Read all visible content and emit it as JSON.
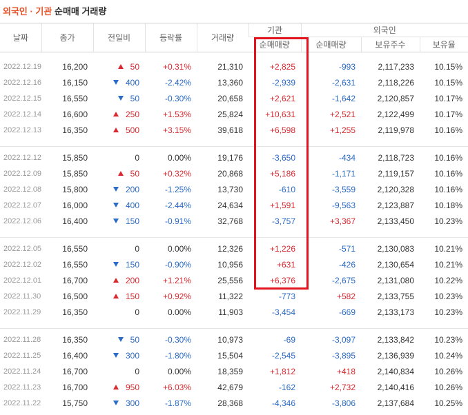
{
  "title": {
    "highlight": "외국인 · 기관",
    "rest": "순매매 거래량"
  },
  "table": {
    "header_top": [
      "날짜",
      "종가",
      "전일비",
      "등락률",
      "거래량",
      "기관",
      "외국인"
    ],
    "header_sub": [
      "순매매량",
      "순매매량",
      "보유주수",
      "보유율"
    ],
    "groups": [
      [
        {
          "date": "2022.12.19",
          "close": "16,200",
          "dir": "up",
          "change": "50",
          "rate": "+0.31%",
          "volume": "21,310",
          "inst": "+2,825",
          "foreign": "-993",
          "holdings": "2,117,233",
          "ratio": "10.15%"
        },
        {
          "date": "2022.12.16",
          "close": "16,150",
          "dir": "down",
          "change": "400",
          "rate": "-2.42%",
          "volume": "13,360",
          "inst": "-2,939",
          "foreign": "-2,631",
          "holdings": "2,118,226",
          "ratio": "10.15%"
        },
        {
          "date": "2022.12.15",
          "close": "16,550",
          "dir": "down",
          "change": "50",
          "rate": "-0.30%",
          "volume": "20,658",
          "inst": "+2,621",
          "foreign": "-1,642",
          "holdings": "2,120,857",
          "ratio": "10.17%"
        },
        {
          "date": "2022.12.14",
          "close": "16,600",
          "dir": "up",
          "change": "250",
          "rate": "+1.53%",
          "volume": "25,824",
          "inst": "+10,631",
          "foreign": "+2,521",
          "holdings": "2,122,499",
          "ratio": "10.17%"
        },
        {
          "date": "2022.12.13",
          "close": "16,350",
          "dir": "up",
          "change": "500",
          "rate": "+3.15%",
          "volume": "39,618",
          "inst": "+6,598",
          "foreign": "+1,255",
          "holdings": "2,119,978",
          "ratio": "10.16%"
        }
      ],
      [
        {
          "date": "2022.12.12",
          "close": "15,850",
          "dir": null,
          "change": "0",
          "rate": "0.00%",
          "volume": "19,176",
          "inst": "-3,650",
          "foreign": "-434",
          "holdings": "2,118,723",
          "ratio": "10.16%"
        },
        {
          "date": "2022.12.09",
          "close": "15,850",
          "dir": "up",
          "change": "50",
          "rate": "+0.32%",
          "volume": "20,868",
          "inst": "+5,186",
          "foreign": "-1,171",
          "holdings": "2,119,157",
          "ratio": "10.16%"
        },
        {
          "date": "2022.12.08",
          "close": "15,800",
          "dir": "down",
          "change": "200",
          "rate": "-1.25%",
          "volume": "13,730",
          "inst": "-610",
          "foreign": "-3,559",
          "holdings": "2,120,328",
          "ratio": "10.16%"
        },
        {
          "date": "2022.12.07",
          "close": "16,000",
          "dir": "down",
          "change": "400",
          "rate": "-2.44%",
          "volume": "24,634",
          "inst": "+1,591",
          "foreign": "-9,563",
          "holdings": "2,123,887",
          "ratio": "10.18%"
        },
        {
          "date": "2022.12.06",
          "close": "16,400",
          "dir": "down",
          "change": "150",
          "rate": "-0.91%",
          "volume": "32,768",
          "inst": "-3,757",
          "foreign": "+3,367",
          "holdings": "2,133,450",
          "ratio": "10.23%"
        }
      ],
      [
        {
          "date": "2022.12.05",
          "close": "16,550",
          "dir": null,
          "change": "0",
          "rate": "0.00%",
          "volume": "12,326",
          "inst": "+1,226",
          "foreign": "-571",
          "holdings": "2,130,083",
          "ratio": "10.21%"
        },
        {
          "date": "2022.12.02",
          "close": "16,550",
          "dir": "down",
          "change": "150",
          "rate": "-0.90%",
          "volume": "10,956",
          "inst": "+631",
          "foreign": "-426",
          "holdings": "2,130,654",
          "ratio": "10.21%"
        },
        {
          "date": "2022.12.01",
          "close": "16,700",
          "dir": "up",
          "change": "200",
          "rate": "+1.21%",
          "volume": "25,556",
          "inst": "+6,376",
          "foreign": "-2,675",
          "holdings": "2,131,080",
          "ratio": "10.22%"
        },
        {
          "date": "2022.11.30",
          "close": "16,500",
          "dir": "up",
          "change": "150",
          "rate": "+0.92%",
          "volume": "11,322",
          "inst": "-773",
          "foreign": "+582",
          "holdings": "2,133,755",
          "ratio": "10.23%"
        },
        {
          "date": "2022.11.29",
          "close": "16,350",
          "dir": null,
          "change": "0",
          "rate": "0.00%",
          "volume": "11,903",
          "inst": "-3,454",
          "foreign": "-669",
          "holdings": "2,133,173",
          "ratio": "10.23%"
        }
      ],
      [
        {
          "date": "2022.11.28",
          "close": "16,350",
          "dir": "down",
          "change": "50",
          "rate": "-0.30%",
          "volume": "10,973",
          "inst": "-69",
          "foreign": "-3,097",
          "holdings": "2,133,842",
          "ratio": "10.23%"
        },
        {
          "date": "2022.11.25",
          "close": "16,400",
          "dir": "down",
          "change": "300",
          "rate": "-1.80%",
          "volume": "15,504",
          "inst": "-2,545",
          "foreign": "-3,895",
          "holdings": "2,136,939",
          "ratio": "10.24%"
        },
        {
          "date": "2022.11.24",
          "close": "16,700",
          "dir": null,
          "change": "0",
          "rate": "0.00%",
          "volume": "18,359",
          "inst": "+1,812",
          "foreign": "+418",
          "holdings": "2,140,834",
          "ratio": "10.26%"
        },
        {
          "date": "2022.11.23",
          "close": "16,700",
          "dir": "up",
          "change": "950",
          "rate": "+6.03%",
          "volume": "42,679",
          "inst": "-162",
          "foreign": "+2,732",
          "holdings": "2,140,416",
          "ratio": "10.26%"
        },
        {
          "date": "2022.11.22",
          "close": "15,750",
          "dir": "down",
          "change": "300",
          "rate": "-1.87%",
          "volume": "28,368",
          "inst": "-4,346",
          "foreign": "-3,806",
          "holdings": "2,137,684",
          "ratio": "10.25%"
        }
      ]
    ]
  }
}
